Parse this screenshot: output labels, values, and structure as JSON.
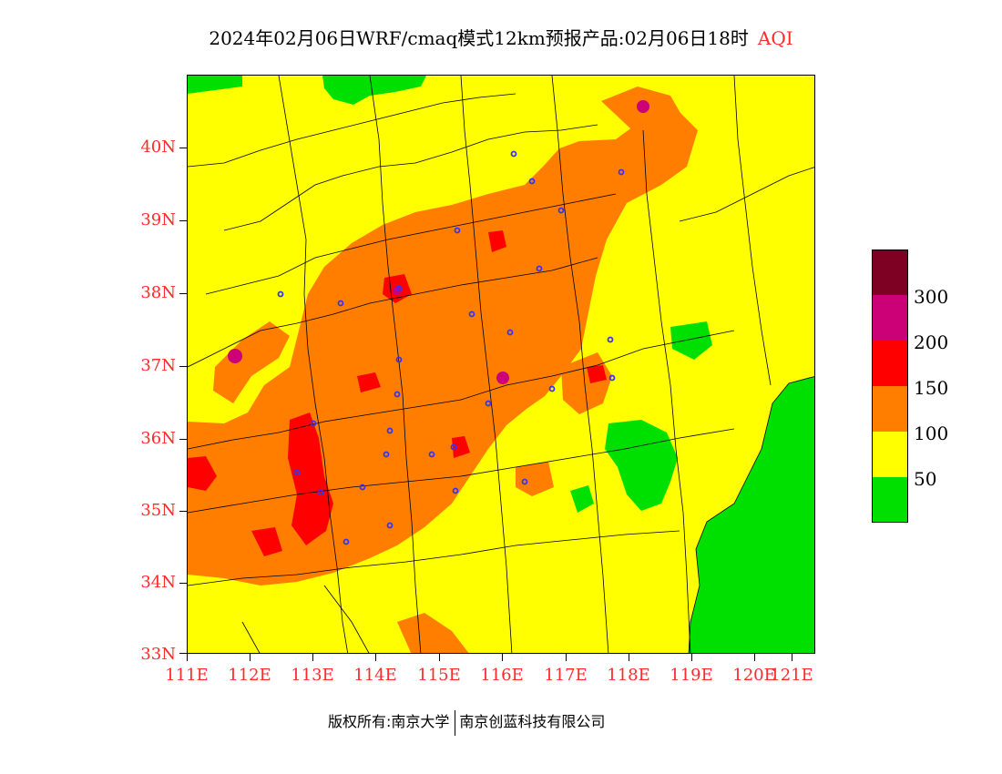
{
  "title": {
    "main": "2024年02月06日WRF/cmaq模式12km预报产品:02月06日18时",
    "product": "AQI"
  },
  "colors": {
    "label_red": "#ff2a2a",
    "green": "#00e000",
    "yellow": "#ffff00",
    "orange": "#ff7e00",
    "red": "#ff0000",
    "purple": "#cc0077",
    "maroon": "#7e0023",
    "station_marker": "#3333ff"
  },
  "map": {
    "lat_labels": [
      "40N",
      "39N",
      "38N",
      "37N",
      "36N",
      "35N",
      "34N",
      "33N"
    ],
    "lon_labels": [
      "111E",
      "112E",
      "113E",
      "114E",
      "115E",
      "116E",
      "117E",
      "118E",
      "119E",
      "120E",
      "121E"
    ]
  },
  "legend": {
    "colors": [
      "#7e0023",
      "#cc0077",
      "#ff0000",
      "#ff7e00",
      "#ffff00",
      "#00e000"
    ],
    "labels": [
      "300",
      "200",
      "150",
      "100",
      "50"
    ]
  },
  "footer": {
    "copyright": "版权所有:南京大学",
    "company": "南京创蓝科技有限公司"
  }
}
